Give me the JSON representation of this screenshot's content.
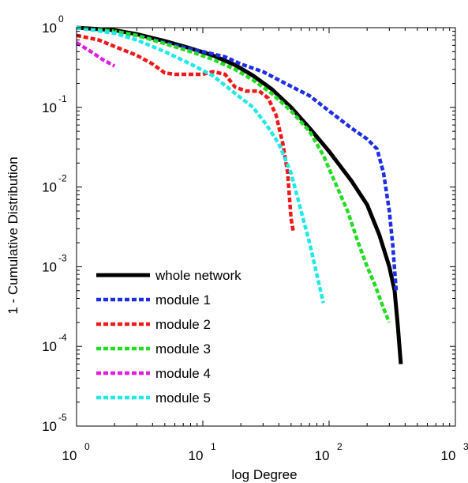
{
  "chart_data": {
    "type": "line",
    "title": "",
    "xlabel": "log Degree",
    "ylabel": "1 - Cumulative Distribution",
    "xscale": "log",
    "yscale": "log",
    "xlim": [
      1,
      1000
    ],
    "ylim": [
      1e-05,
      1
    ],
    "grid": false,
    "legend_position": "bottom-left",
    "x_ticks": [
      {
        "value": 1,
        "base": "10",
        "exp": "0"
      },
      {
        "value": 10,
        "base": "10",
        "exp": "1"
      },
      {
        "value": 100,
        "base": "10",
        "exp": "2"
      },
      {
        "value": 1000,
        "base": "10",
        "exp": "3"
      }
    ],
    "y_ticks": [
      {
        "value": 1e-05,
        "base": "10",
        "exp": "-5"
      },
      {
        "value": 0.0001,
        "base": "10",
        "exp": "-4"
      },
      {
        "value": 0.001,
        "base": "10",
        "exp": "-3"
      },
      {
        "value": 0.01,
        "base": "10",
        "exp": "-2"
      },
      {
        "value": 0.1,
        "base": "10",
        "exp": "-1"
      },
      {
        "value": 1,
        "base": "10",
        "exp": "0"
      }
    ],
    "series": [
      {
        "name": "whole network",
        "color": "#000000",
        "style": "solid",
        "points": [
          [
            1,
            1
          ],
          [
            2,
            0.93
          ],
          [
            3,
            0.83
          ],
          [
            5,
            0.68
          ],
          [
            8,
            0.55
          ],
          [
            12,
            0.45
          ],
          [
            18,
            0.34
          ],
          [
            25,
            0.25
          ],
          [
            35,
            0.17
          ],
          [
            50,
            0.1
          ],
          [
            70,
            0.055
          ],
          [
            100,
            0.028
          ],
          [
            150,
            0.012
          ],
          [
            200,
            0.006
          ],
          [
            250,
            0.0025
          ],
          [
            300,
            0.001
          ],
          [
            330,
            0.0005
          ],
          [
            350,
            0.00018
          ],
          [
            370,
            6e-05
          ]
        ]
      },
      {
        "name": "module 1",
        "color": "#1e2de6",
        "style": "dashed",
        "points": [
          [
            1,
            1
          ],
          [
            3,
            0.8
          ],
          [
            6,
            0.6
          ],
          [
            10,
            0.5
          ],
          [
            15,
            0.43
          ],
          [
            20,
            0.35
          ],
          [
            30,
            0.28
          ],
          [
            45,
            0.2
          ],
          [
            70,
            0.14
          ],
          [
            100,
            0.09
          ],
          [
            150,
            0.055
          ],
          [
            200,
            0.04
          ],
          [
            240,
            0.03
          ],
          [
            270,
            0.015
          ],
          [
            300,
            0.005
          ],
          [
            320,
            0.0018
          ],
          [
            340,
            0.0005
          ]
        ]
      },
      {
        "name": "module 2",
        "color": "#f01818",
        "style": "dashed",
        "points": [
          [
            1,
            0.8
          ],
          [
            1.5,
            0.7
          ],
          [
            2,
            0.58
          ],
          [
            3,
            0.45
          ],
          [
            4,
            0.35
          ],
          [
            5,
            0.27
          ],
          [
            6,
            0.26
          ],
          [
            10,
            0.26
          ],
          [
            12,
            0.28
          ],
          [
            15,
            0.26
          ],
          [
            18,
            0.18
          ],
          [
            22,
            0.16
          ],
          [
            28,
            0.16
          ],
          [
            33,
            0.13
          ],
          [
            38,
            0.08
          ],
          [
            43,
            0.035
          ],
          [
            47,
            0.015
          ],
          [
            50,
            0.004
          ],
          [
            52,
            0.0028
          ]
        ]
      },
      {
        "name": "module 3",
        "color": "#22dd22",
        "style": "dashed",
        "points": [
          [
            1,
            1
          ],
          [
            2,
            0.9
          ],
          [
            3,
            0.8
          ],
          [
            5,
            0.63
          ],
          [
            8,
            0.5
          ],
          [
            12,
            0.4
          ],
          [
            18,
            0.3
          ],
          [
            25,
            0.22
          ],
          [
            35,
            0.15
          ],
          [
            50,
            0.09
          ],
          [
            70,
            0.05
          ],
          [
            90,
            0.025
          ],
          [
            110,
            0.012
          ],
          [
            140,
            0.005
          ],
          [
            170,
            0.002
          ],
          [
            200,
            0.001
          ],
          [
            230,
            0.0006
          ],
          [
            270,
            0.0003
          ],
          [
            300,
            0.0002
          ]
        ]
      },
      {
        "name": "module 4",
        "color": "#e01ee0",
        "style": "dashed",
        "points": [
          [
            1,
            0.65
          ],
          [
            1.3,
            0.5
          ],
          [
            1.6,
            0.4
          ],
          [
            2,
            0.33
          ]
        ]
      },
      {
        "name": "module 5",
        "color": "#22e8e8",
        "style": "dashed",
        "points": [
          [
            1,
            1
          ],
          [
            2,
            0.85
          ],
          [
            3,
            0.7
          ],
          [
            5,
            0.5
          ],
          [
            8,
            0.35
          ],
          [
            12,
            0.25
          ],
          [
            18,
            0.15
          ],
          [
            25,
            0.1
          ],
          [
            32,
            0.06
          ],
          [
            40,
            0.035
          ],
          [
            50,
            0.015
          ],
          [
            60,
            0.005
          ],
          [
            70,
            0.002
          ],
          [
            80,
            0.0008
          ],
          [
            90,
            0.00035
          ]
        ]
      }
    ]
  }
}
